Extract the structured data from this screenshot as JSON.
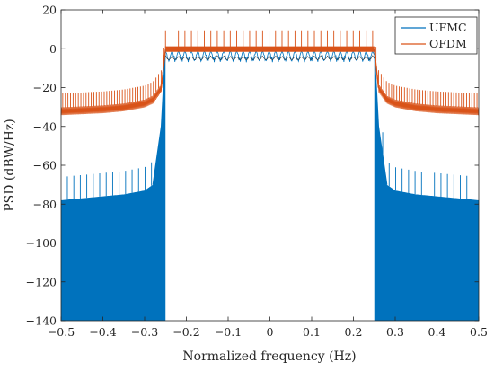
{
  "chart_data": {
    "type": "line",
    "xlabel": "Normalized frequency (Hz)",
    "ylabel": "PSD (dBW/Hz)",
    "xlim": [
      -0.5,
      0.5
    ],
    "ylim": [
      -140,
      20
    ],
    "x_ticks": [
      -0.5,
      -0.4,
      -0.3,
      -0.2,
      -0.1,
      0,
      0.1,
      0.2,
      0.3,
      0.4,
      0.5
    ],
    "x_tick_labels": [
      "−0.5",
      "−0.4",
      "−0.3",
      "−0.2",
      "−0.1",
      "0",
      "0.1",
      "0.2",
      "0.3",
      "0.4",
      "0.5"
    ],
    "y_ticks": [
      -140,
      -120,
      -100,
      -80,
      -60,
      -40,
      -20,
      0,
      20
    ],
    "y_tick_labels": [
      "−140",
      "−120",
      "−100",
      "−80",
      "−60",
      "−40",
      "−20",
      "0",
      "20"
    ],
    "grid": false,
    "legend_position": "top-right",
    "series": [
      {
        "name": "UFMC",
        "color": "#0072BD",
        "x": [
          -0.5,
          -0.45,
          -0.4,
          -0.35,
          -0.3,
          -0.28,
          -0.26,
          -0.25,
          -0.2,
          -0.1,
          0,
          0.1,
          0.2,
          0.25,
          0.26,
          0.28,
          0.3,
          0.35,
          0.4,
          0.45,
          0.5
        ],
        "values": [
          -78,
          -77,
          -76,
          -75,
          -73,
          -70,
          -40,
          0,
          -1,
          -2,
          -2,
          -2,
          -1,
          0,
          -40,
          -70,
          -73,
          -75,
          -76,
          -77,
          -78
        ]
      },
      {
        "name": "OFDM",
        "color": "#D95319",
        "x": [
          -0.5,
          -0.45,
          -0.4,
          -0.35,
          -0.3,
          -0.28,
          -0.26,
          -0.25,
          -0.2,
          -0.1,
          0,
          0.1,
          0.2,
          0.25,
          0.26,
          0.28,
          0.3,
          0.35,
          0.4,
          0.45,
          0.5
        ],
        "values": [
          -32,
          -31.5,
          -31,
          -30,
          -28,
          -26,
          -20,
          0,
          0,
          0,
          0,
          0,
          0,
          0,
          -20,
          -26,
          -28,
          -30,
          -31,
          -31.5,
          -32
        ]
      }
    ]
  }
}
